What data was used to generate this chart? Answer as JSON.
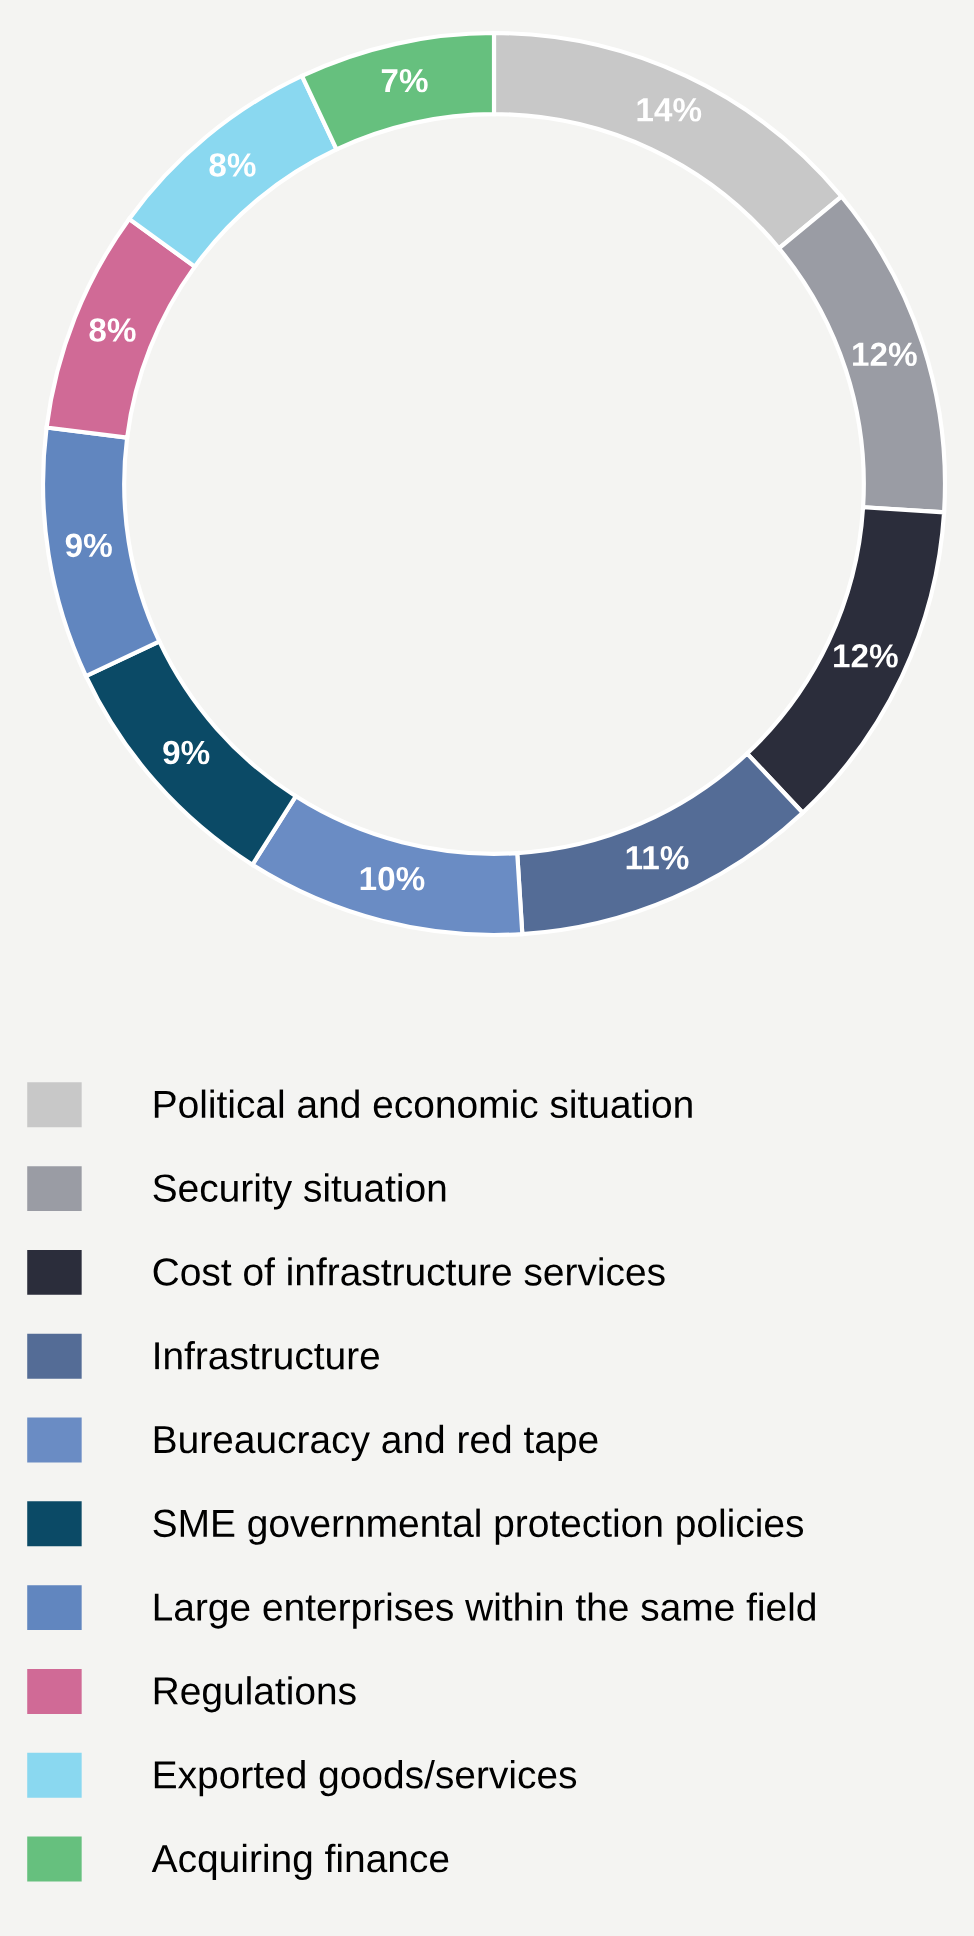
{
  "chart_data": {
    "type": "donut",
    "categories": [
      "Political and economic situation",
      "Security situation",
      "Cost of infrastructure services",
      "Infrastructure",
      "Bureaucracy and red tape",
      "SME governmental protection policies",
      "Large enterprises within the same field",
      "Regulations",
      "Exported goods/services",
      "Acquiring finance"
    ],
    "values": [
      14,
      12,
      12,
      11,
      10,
      9,
      9,
      8,
      8,
      7
    ],
    "colors": [
      "#c8c8c8",
      "#9a9ca4",
      "#2b2d3b",
      "#546c96",
      "#6a8cc4",
      "#0b4a66",
      "#6186bf",
      "#d06a96",
      "#8ad8f0",
      "#66c07e"
    ],
    "value_labels": [
      "14%",
      "12%",
      "12%",
      "11%",
      "10%",
      "9%",
      "9%",
      "8%",
      "8%",
      "7%"
    ],
    "legend": "bottom"
  }
}
